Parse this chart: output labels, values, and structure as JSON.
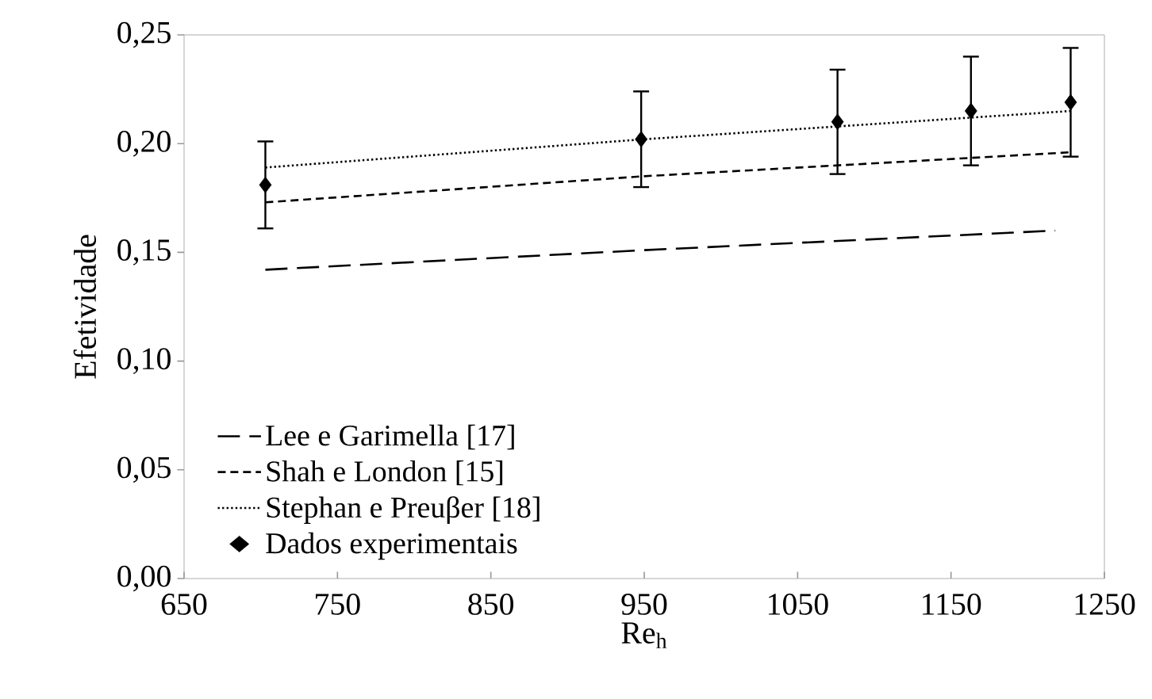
{
  "chart_data": {
    "type": "line",
    "xlabel": "Re$_{h}$",
    "ylabel": "Efetividade",
    "xlim": [
      650,
      1250
    ],
    "xticks": [
      650,
      750,
      850,
      950,
      1050,
      1150,
      1250
    ],
    "ylim": [
      0,
      0.25
    ],
    "yticks": [
      {
        "value": 0,
        "label": "0,00"
      },
      {
        "value": 0.05,
        "label": "0,05"
      },
      {
        "value": 0.1,
        "label": "0,10"
      },
      {
        "value": 0.15,
        "label": "0,15"
      },
      {
        "value": 0.2,
        "label": "0,20"
      },
      {
        "value": 0.25,
        "label": "0,25"
      }
    ],
    "grid": false,
    "legend": "bottom left",
    "series": [
      {
        "name": "Lee e Garimella [17]",
        "type": "line",
        "line_style": "dashed",
        "marker": "none",
        "color": "#000000",
        "x": [
          703,
          950,
          1218
        ],
        "values": [
          0.142,
          0.151,
          0.16
        ]
      },
      {
        "name": "Shah e London [15]",
        "type": "line",
        "line_style": "dashed",
        "marker": "none",
        "color": "#000000",
        "x": [
          703,
          950,
          1228
        ],
        "values": [
          0.173,
          0.185,
          0.196
        ]
      },
      {
        "name": "Stephan e Preuβer [18]",
        "type": "line",
        "line_style": "dotted",
        "marker": "none",
        "color": "#000000",
        "x": [
          703,
          950,
          1228
        ],
        "values": [
          0.189,
          0.202,
          0.215
        ]
      },
      {
        "name": "Dados experimentais",
        "type": "scatter",
        "marker": "diamond",
        "color": "#000000",
        "x": [
          703,
          948,
          1076,
          1163,
          1228
        ],
        "values": [
          0.181,
          0.202,
          0.21,
          0.215,
          0.219
        ],
        "errors": [
          0.02,
          0.022,
          0.024,
          0.025,
          0.025
        ]
      }
    ]
  }
}
